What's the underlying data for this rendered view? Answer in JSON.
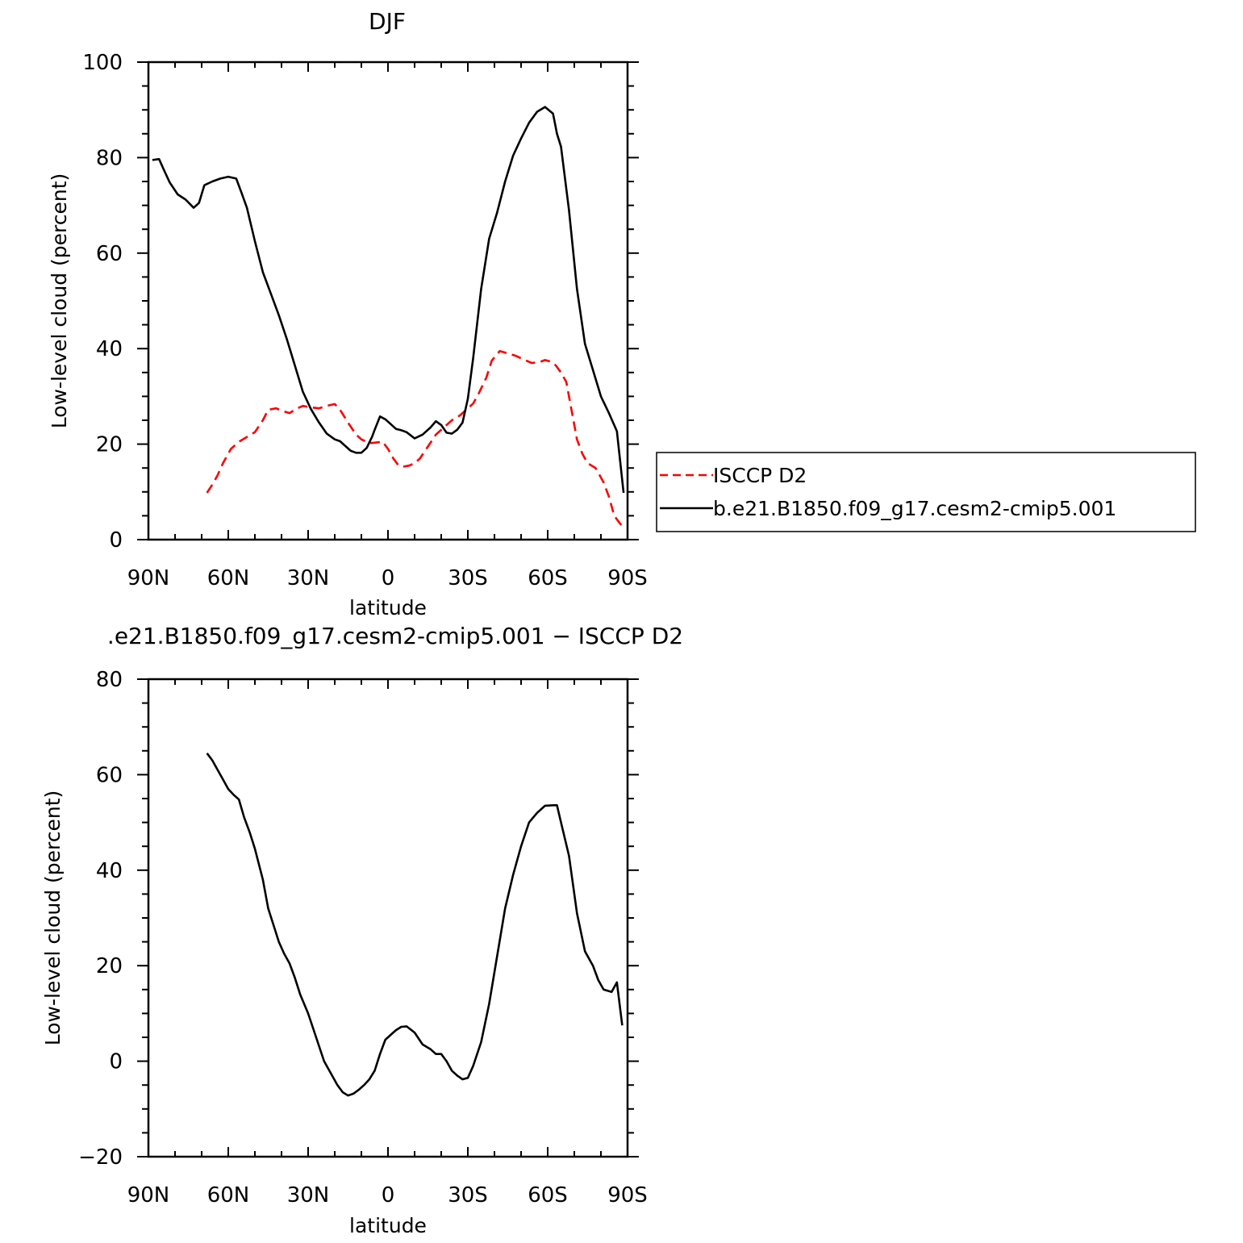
{
  "chart_data": [
    {
      "type": "line",
      "title": "DJF",
      "xlabel": "latitude",
      "ylabel": "Low-level cloud (percent)",
      "xlim": [
        90,
        -90
      ],
      "ylim": [
        0,
        100
      ],
      "xticks": [
        {
          "value": 90,
          "label": "90N"
        },
        {
          "value": 60,
          "label": "60N"
        },
        {
          "value": 30,
          "label": "30N"
        },
        {
          "value": 0,
          "label": "0"
        },
        {
          "value": -30,
          "label": "30S"
        },
        {
          "value": -60,
          "label": "60S"
        },
        {
          "value": -90,
          "label": "90S"
        }
      ],
      "yticks": [
        {
          "value": 0,
          "label": "0"
        },
        {
          "value": 20,
          "label": "20"
        },
        {
          "value": 40,
          "label": "40"
        },
        {
          "value": 60,
          "label": "60"
        },
        {
          "value": 80,
          "label": "80"
        },
        {
          "value": 100,
          "label": "100"
        }
      ],
      "legend": "right",
      "series": [
        {
          "name": "ISCCP D2",
          "color": "#ff0000",
          "dash": "dashed",
          "x": [
            68,
            66,
            64,
            62,
            59,
            56,
            53,
            50,
            47,
            45,
            42,
            40,
            37,
            34,
            32,
            29,
            26,
            23,
            20,
            18,
            15,
            12,
            10,
            7,
            5,
            2,
            0,
            -2,
            -4,
            -6,
            -8,
            -10,
            -12,
            -15,
            -18,
            -21,
            -24,
            -27,
            -30,
            -32,
            -34,
            -37,
            -39,
            -42,
            -45,
            -48,
            -51,
            -54,
            -57,
            -59,
            -61,
            -63,
            -65,
            -67,
            -69,
            -71,
            -73,
            -75,
            -78,
            -81,
            -83,
            -85,
            -87,
            -88.5
          ],
          "y": [
            9.8,
            11.5,
            13.5,
            16,
            19,
            20.5,
            21.5,
            22.5,
            25,
            27.2,
            27.5,
            27,
            26.5,
            27.5,
            28,
            27.7,
            27.5,
            28,
            28.4,
            27.2,
            24.5,
            22,
            21,
            20.2,
            20.3,
            20.5,
            19,
            17,
            15.5,
            15.3,
            15.5,
            16,
            17,
            19.5,
            22,
            23.5,
            25,
            26,
            27.5,
            28.5,
            30.5,
            34,
            37.5,
            39.5,
            39,
            38.5,
            37.7,
            37,
            37.2,
            37.6,
            37.3,
            36.5,
            35,
            33,
            27,
            21,
            18,
            16,
            15,
            12,
            9,
            5,
            3.5,
            2.5
          ]
        },
        {
          "name": "b.e21.B1850.f09_g17.cesm2-cmip5.001",
          "color": "#000000",
          "dash": "solid",
          "x": [
            88.5,
            86,
            84,
            82,
            79,
            76,
            73,
            71,
            69,
            66,
            63,
            60,
            57,
            55,
            53,
            50,
            47,
            44,
            41,
            38,
            35,
            32,
            29,
            26,
            23,
            20,
            18,
            16,
            14,
            12,
            10,
            8,
            6,
            5,
            3,
            1,
            -1,
            -3,
            -5,
            -7,
            -10,
            -13,
            -16,
            -18,
            -20,
            -22,
            -24,
            -26,
            -28,
            -30,
            -32,
            -35,
            -38,
            -41,
            -44,
            -47,
            -50,
            -53,
            -56,
            -59,
            -62,
            -63.5,
            -65,
            -68,
            -71,
            -74,
            -77,
            -80,
            -83,
            -86,
            -88.5
          ],
          "y": [
            79.5,
            79.7,
            77.2,
            74.8,
            72.3,
            71.2,
            69.5,
            70.5,
            74.2,
            75,
            75.6,
            76,
            75.6,
            72.6,
            69.5,
            62.5,
            56,
            51.5,
            47,
            42,
            36.5,
            31,
            27.4,
            24.6,
            22.2,
            21,
            20.6,
            19.6,
            18.6,
            18.2,
            18.2,
            19.2,
            21.5,
            23,
            25.8,
            25.2,
            24.2,
            23.2,
            22.9,
            22.5,
            21.2,
            22,
            23.5,
            24.8,
            24,
            22.4,
            22.2,
            23,
            24.5,
            29.5,
            38,
            52.5,
            63,
            68.5,
            75,
            80.4,
            84,
            87.3,
            89.6,
            90.6,
            89.2,
            85,
            82.3,
            69,
            52.5,
            41,
            35.5,
            30,
            26.5,
            22.7,
            9.8
          ]
        }
      ]
    },
    {
      "type": "line",
      "title": ".e21.B1850.f09_g17.cesm2-cmip5.001 − ISCCP D2",
      "xlabel": "latitude",
      "ylabel": "Low-level cloud (percent)",
      "xlim": [
        90,
        -90
      ],
      "ylim": [
        -20,
        80
      ],
      "xticks": [
        {
          "value": 90,
          "label": "90N"
        },
        {
          "value": 60,
          "label": "60N"
        },
        {
          "value": 30,
          "label": "30N"
        },
        {
          "value": 0,
          "label": "0"
        },
        {
          "value": -30,
          "label": "30S"
        },
        {
          "value": -60,
          "label": "60S"
        },
        {
          "value": -90,
          "label": "90S"
        }
      ],
      "yticks": [
        {
          "value": -20,
          "label": "−20"
        },
        {
          "value": 0,
          "label": "0"
        },
        {
          "value": 20,
          "label": "20"
        },
        {
          "value": 40,
          "label": "40"
        },
        {
          "value": 60,
          "label": "60"
        },
        {
          "value": 80,
          "label": "80"
        }
      ],
      "legend": "none",
      "series": [
        {
          "name": "",
          "color": "#000000",
          "dash": "solid",
          "x": [
            68,
            66,
            64,
            62,
            60,
            58,
            56,
            54,
            52,
            50,
            47,
            45,
            43,
            41,
            39,
            37,
            35,
            33,
            30,
            27,
            24,
            21,
            19,
            17,
            15,
            13,
            11,
            9,
            7,
            5,
            3,
            1,
            -1,
            -3,
            -5,
            -7,
            -10,
            -13,
            -16,
            -18,
            -20,
            -22,
            -24,
            -26,
            -28,
            -30,
            -32,
            -35,
            -38,
            -41,
            -44,
            -47,
            -50,
            -53,
            -56,
            -59,
            -62,
            -63.5,
            -65,
            -68,
            -71,
            -74,
            -77,
            -79,
            -81,
            -84,
            -86,
            -88
          ],
          "y": [
            64.5,
            63,
            61,
            59,
            57,
            55.8,
            54.8,
            51,
            48,
            44.5,
            38,
            32,
            28.5,
            25,
            22.5,
            20.5,
            17.5,
            14,
            10,
            5,
            0,
            -3,
            -5,
            -6.5,
            -7.2,
            -6.8,
            -6,
            -5,
            -3.8,
            -2,
            1.5,
            4.5,
            5.5,
            6.5,
            7.2,
            7.3,
            6,
            3.5,
            2.5,
            1.5,
            1.5,
            0,
            -2,
            -3,
            -3.8,
            -3.5,
            -1,
            4,
            12,
            22,
            32,
            39,
            45,
            50,
            52,
            53.5,
            53.6,
            53.6,
            50,
            43,
            31,
            23,
            20,
            17,
            15,
            14.5,
            16.5,
            7.5
          ]
        }
      ]
    }
  ],
  "legend": {
    "entries": [
      "ISCCP D2",
      "b.e21.B1850.f09_g17.cesm2-cmip5.001"
    ]
  }
}
